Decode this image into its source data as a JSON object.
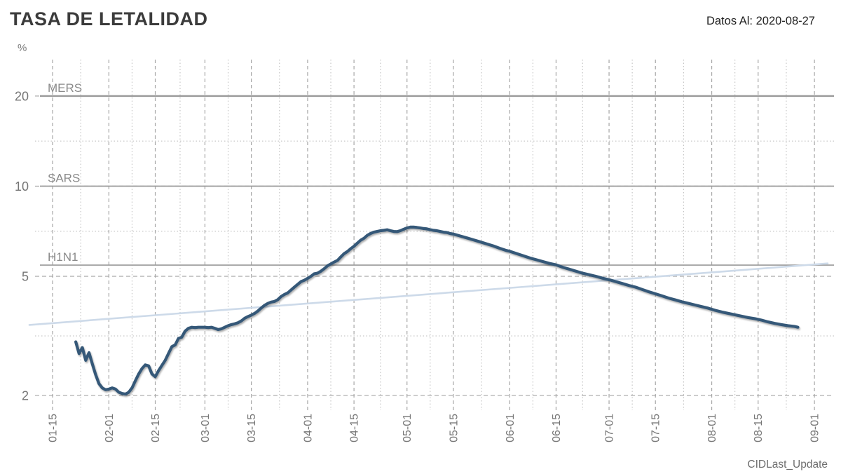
{
  "header": {
    "title": "TASA DE LETALIDAD",
    "datos_al": "Datos Al: 2020-08-27"
  },
  "caption": "CIDLast_Update",
  "colors": {
    "fatality_line": "#355878",
    "trend_line": "#cddae9",
    "reference_line": "#9a9a9a",
    "grid_dashed": "#a6a6a6",
    "grid_dotted": "#c0c0c0",
    "axis_text": "#767676",
    "reference_label": "#8a8a8a",
    "title_text": "#3b3b3b"
  },
  "chart_data": {
    "type": "line",
    "title": "TASA DE LETALIDAD",
    "subtitle": "Datos Al: 2020-08-27",
    "y_axis": {
      "unit_label": "%",
      "scale": "log",
      "tick_labels": [
        2,
        5,
        10,
        20
      ],
      "minor_gridlines": [
        3.162,
        7.071,
        14.142
      ],
      "range": [
        1.8,
        26.5
      ],
      "grid": "dashed-major-dotted-minor"
    },
    "x_axis": {
      "year": 2020,
      "tick_labels": [
        "01-15",
        "02-01",
        "02-15",
        "03-01",
        "03-15",
        "04-01",
        "04-15",
        "05-01",
        "05-15",
        "06-01",
        "06-15",
        "07-01",
        "07-15",
        "08-01",
        "08-15",
        "09-01"
      ],
      "minor_gridlines": "midpoints-between-ticks",
      "label_rotation_deg": -90
    },
    "reference_lines": [
      {
        "label": "MERS",
        "value": 20
      },
      {
        "label": "SARS",
        "value": 10
      },
      {
        "label": "H1N1",
        "value": 5.45
      }
    ],
    "legend": "none",
    "series": [
      {
        "name": "tasa-de-letalidad",
        "color": "#355878",
        "points": [
          [
            "01-22",
            3.02
          ],
          [
            "01-23",
            2.76
          ],
          [
            "01-24",
            2.89
          ],
          [
            "01-25",
            2.62
          ],
          [
            "01-26",
            2.78
          ],
          [
            "01-27",
            2.55
          ],
          [
            "01-28",
            2.35
          ],
          [
            "01-29",
            2.19
          ],
          [
            "01-30",
            2.12
          ],
          [
            "01-31",
            2.09
          ],
          [
            "02-01",
            2.1
          ],
          [
            "02-02",
            2.12
          ],
          [
            "02-03",
            2.1
          ],
          [
            "02-04",
            2.05
          ],
          [
            "02-05",
            2.03
          ],
          [
            "02-06",
            2.02
          ],
          [
            "02-07",
            2.05
          ],
          [
            "02-08",
            2.12
          ],
          [
            "02-09",
            2.24
          ],
          [
            "02-10",
            2.36
          ],
          [
            "02-11",
            2.46
          ],
          [
            "02-12",
            2.53
          ],
          [
            "02-13",
            2.51
          ],
          [
            "02-14",
            2.36
          ],
          [
            "02-15",
            2.31
          ],
          [
            "02-16",
            2.42
          ],
          [
            "02-17",
            2.52
          ],
          [
            "02-18",
            2.62
          ],
          [
            "02-19",
            2.76
          ],
          [
            "02-20",
            2.91
          ],
          [
            "02-21",
            2.95
          ],
          [
            "02-22",
            3.1
          ],
          [
            "02-23",
            3.13
          ],
          [
            "02-24",
            3.28
          ],
          [
            "02-25",
            3.35
          ],
          [
            "02-26",
            3.38
          ],
          [
            "02-27",
            3.37
          ],
          [
            "02-28",
            3.38
          ],
          [
            "02-29",
            3.38
          ],
          [
            "03-01",
            3.38
          ],
          [
            "03-02",
            3.37
          ],
          [
            "03-03",
            3.38
          ],
          [
            "03-04",
            3.35
          ],
          [
            "03-05",
            3.32
          ],
          [
            "03-06",
            3.34
          ],
          [
            "03-07",
            3.38
          ],
          [
            "03-08",
            3.42
          ],
          [
            "03-09",
            3.45
          ],
          [
            "03-10",
            3.47
          ],
          [
            "03-11",
            3.5
          ],
          [
            "03-12",
            3.55
          ],
          [
            "03-13",
            3.62
          ],
          [
            "03-14",
            3.67
          ],
          [
            "03-15",
            3.71
          ],
          [
            "03-16",
            3.76
          ],
          [
            "03-17",
            3.83
          ],
          [
            "03-18",
            3.92
          ],
          [
            "03-19",
            4.0
          ],
          [
            "03-20",
            4.06
          ],
          [
            "03-21",
            4.1
          ],
          [
            "03-22",
            4.12
          ],
          [
            "03-23",
            4.18
          ],
          [
            "03-24",
            4.28
          ],
          [
            "03-25",
            4.35
          ],
          [
            "03-26",
            4.4
          ],
          [
            "03-27",
            4.5
          ],
          [
            "03-28",
            4.6
          ],
          [
            "03-29",
            4.7
          ],
          [
            "03-30",
            4.8
          ],
          [
            "03-31",
            4.85
          ],
          [
            "04-01",
            4.92
          ],
          [
            "04-02",
            5.0
          ],
          [
            "04-03",
            5.1
          ],
          [
            "04-04",
            5.12
          ],
          [
            "04-05",
            5.2
          ],
          [
            "04-06",
            5.3
          ],
          [
            "04-07",
            5.42
          ],
          [
            "04-08",
            5.5
          ],
          [
            "04-09",
            5.58
          ],
          [
            "04-10",
            5.65
          ],
          [
            "04-11",
            5.8
          ],
          [
            "04-12",
            5.95
          ],
          [
            "04-13",
            6.05
          ],
          [
            "04-14",
            6.18
          ],
          [
            "04-15",
            6.3
          ],
          [
            "04-16",
            6.45
          ],
          [
            "04-17",
            6.6
          ],
          [
            "04-18",
            6.7
          ],
          [
            "04-19",
            6.85
          ],
          [
            "04-20",
            6.95
          ],
          [
            "04-21",
            7.02
          ],
          [
            "04-22",
            7.06
          ],
          [
            "04-23",
            7.1
          ],
          [
            "04-24",
            7.12
          ],
          [
            "04-25",
            7.15
          ],
          [
            "04-26",
            7.1
          ],
          [
            "04-27",
            7.06
          ],
          [
            "04-28",
            7.05
          ],
          [
            "04-29",
            7.1
          ],
          [
            "04-30",
            7.18
          ],
          [
            "05-01",
            7.25
          ],
          [
            "05-02",
            7.3
          ],
          [
            "05-03",
            7.3
          ],
          [
            "05-04",
            7.28
          ],
          [
            "05-05",
            7.25
          ],
          [
            "05-06",
            7.22
          ],
          [
            "05-07",
            7.2
          ],
          [
            "05-08",
            7.16
          ],
          [
            "05-09",
            7.12
          ],
          [
            "05-10",
            7.1
          ],
          [
            "05-11",
            7.06
          ],
          [
            "05-12",
            7.02
          ],
          [
            "05-13",
            7.0
          ],
          [
            "05-14",
            6.95
          ],
          [
            "05-15",
            6.92
          ],
          [
            "05-17",
            6.82
          ],
          [
            "05-19",
            6.72
          ],
          [
            "05-21",
            6.62
          ],
          [
            "05-23",
            6.52
          ],
          [
            "05-25",
            6.42
          ],
          [
            "05-27",
            6.32
          ],
          [
            "05-29",
            6.2
          ],
          [
            "05-31",
            6.1
          ],
          [
            "06-01",
            6.06
          ],
          [
            "06-03",
            5.96
          ],
          [
            "06-05",
            5.86
          ],
          [
            "06-07",
            5.76
          ],
          [
            "06-09",
            5.68
          ],
          [
            "06-11",
            5.6
          ],
          [
            "06-13",
            5.52
          ],
          [
            "06-15",
            5.46
          ],
          [
            "06-17",
            5.36
          ],
          [
            "06-19",
            5.28
          ],
          [
            "06-21",
            5.2
          ],
          [
            "06-23",
            5.12
          ],
          [
            "06-25",
            5.06
          ],
          [
            "06-27",
            5.0
          ],
          [
            "06-29",
            4.93
          ],
          [
            "07-01",
            4.87
          ],
          [
            "07-03",
            4.8
          ],
          [
            "07-05",
            4.73
          ],
          [
            "07-07",
            4.66
          ],
          [
            "07-09",
            4.6
          ],
          [
            "07-11",
            4.52
          ],
          [
            "07-13",
            4.44
          ],
          [
            "07-15",
            4.37
          ],
          [
            "07-17",
            4.3
          ],
          [
            "07-19",
            4.23
          ],
          [
            "07-21",
            4.17
          ],
          [
            "07-23",
            4.11
          ],
          [
            "07-25",
            4.06
          ],
          [
            "07-27",
            4.01
          ],
          [
            "07-29",
            3.96
          ],
          [
            "07-31",
            3.91
          ],
          [
            "08-02",
            3.85
          ],
          [
            "08-04",
            3.8
          ],
          [
            "08-06",
            3.76
          ],
          [
            "08-08",
            3.72
          ],
          [
            "08-10",
            3.68
          ],
          [
            "08-12",
            3.64
          ],
          [
            "08-14",
            3.61
          ],
          [
            "08-16",
            3.57
          ],
          [
            "08-18",
            3.52
          ],
          [
            "08-20",
            3.48
          ],
          [
            "08-22",
            3.45
          ],
          [
            "08-24",
            3.42
          ],
          [
            "08-26",
            3.4
          ],
          [
            "08-27",
            3.38
          ]
        ]
      },
      {
        "name": "trend-line",
        "color": "#cddae9",
        "points": [
          [
            "01-08",
            3.44
          ],
          [
            "09-05",
            5.52
          ]
        ]
      }
    ]
  }
}
